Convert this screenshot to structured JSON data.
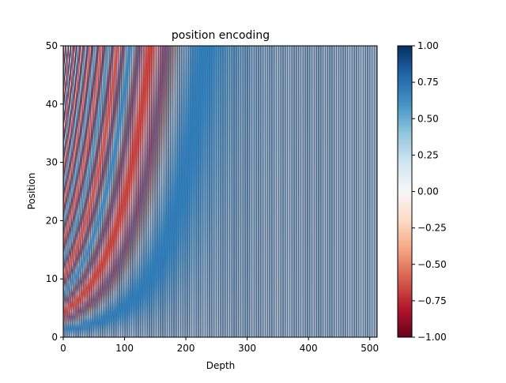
{
  "chart_data": {
    "type": "heatmap",
    "title": "position encoding",
    "xlabel": "Depth",
    "ylabel": "Position",
    "positions": 50,
    "depth": 512,
    "xlim": [
      0,
      512
    ],
    "ylim": [
      0,
      50
    ],
    "xticks": [
      "0",
      "100",
      "200",
      "300",
      "400",
      "500"
    ],
    "yticks": [
      "0",
      "10",
      "20",
      "30",
      "40",
      "50"
    ],
    "colorbar": {
      "colormap": "RdBu",
      "range": [
        -1.0,
        1.0
      ],
      "ticks": [
        "−1.00",
        "−0.75",
        "−0.50",
        "−0.25",
        "0.00",
        "0.25",
        "0.50",
        "0.75",
        "1.00"
      ]
    },
    "colors": {
      "low": "#67001f",
      "mid": "#f7f7f7",
      "high": "#053061"
    }
  }
}
